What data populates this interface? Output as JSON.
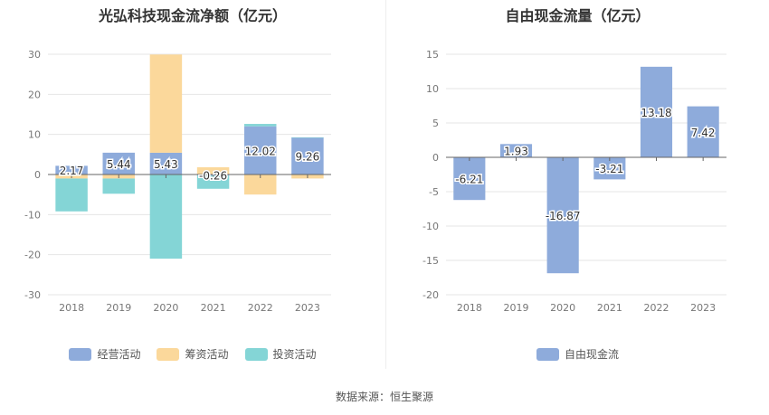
{
  "source_label": "数据来源：恒生聚源",
  "chart_data": [
    {
      "type": "bar",
      "stacked": true,
      "title": "光弘科技现金流净额（亿元）",
      "categories": [
        "2018",
        "2019",
        "2020",
        "2021",
        "2022",
        "2023"
      ],
      "ylim": [
        -30,
        30
      ],
      "yticks": [
        30,
        20,
        10,
        0,
        -10,
        -20,
        -30
      ],
      "grid": true,
      "legend_position": "bottom",
      "series": [
        {
          "name": "经营活动",
          "color": "#8eabdb",
          "values": [
            2.17,
            5.44,
            5.43,
            -0.26,
            12.02,
            9.26
          ]
        },
        {
          "name": "筹资活动",
          "color": "#fbd89b",
          "values": [
            -1.0,
            -1.0,
            24.5,
            1.8,
            -5.0,
            -1.0
          ]
        },
        {
          "name": "投资活动",
          "color": "#84d5d6",
          "values": [
            -8.2,
            -3.8,
            -21.0,
            -3.3,
            0.6,
            0.0
          ]
        }
      ],
      "data_labels": [
        "2.17",
        "5.44",
        "5.43",
        "-0.26",
        "12.02",
        "9.26"
      ]
    },
    {
      "type": "bar",
      "title": "自由现金流量（亿元）",
      "categories": [
        "2018",
        "2019",
        "2020",
        "2021",
        "2022",
        "2023"
      ],
      "ylim": [
        -20,
        15
      ],
      "yticks": [
        15,
        10,
        5,
        0,
        -5,
        -10,
        -15,
        -20
      ],
      "grid": true,
      "legend_position": "bottom",
      "series": [
        {
          "name": "自由现金流",
          "color": "#8eabdb",
          "values": [
            -6.21,
            1.93,
            -16.87,
            -3.21,
            13.18,
            7.42
          ]
        }
      ],
      "data_labels": [
        "-6.21",
        "1.93",
        "-16.87",
        "-3.21",
        "13.18",
        "7.42"
      ]
    }
  ]
}
